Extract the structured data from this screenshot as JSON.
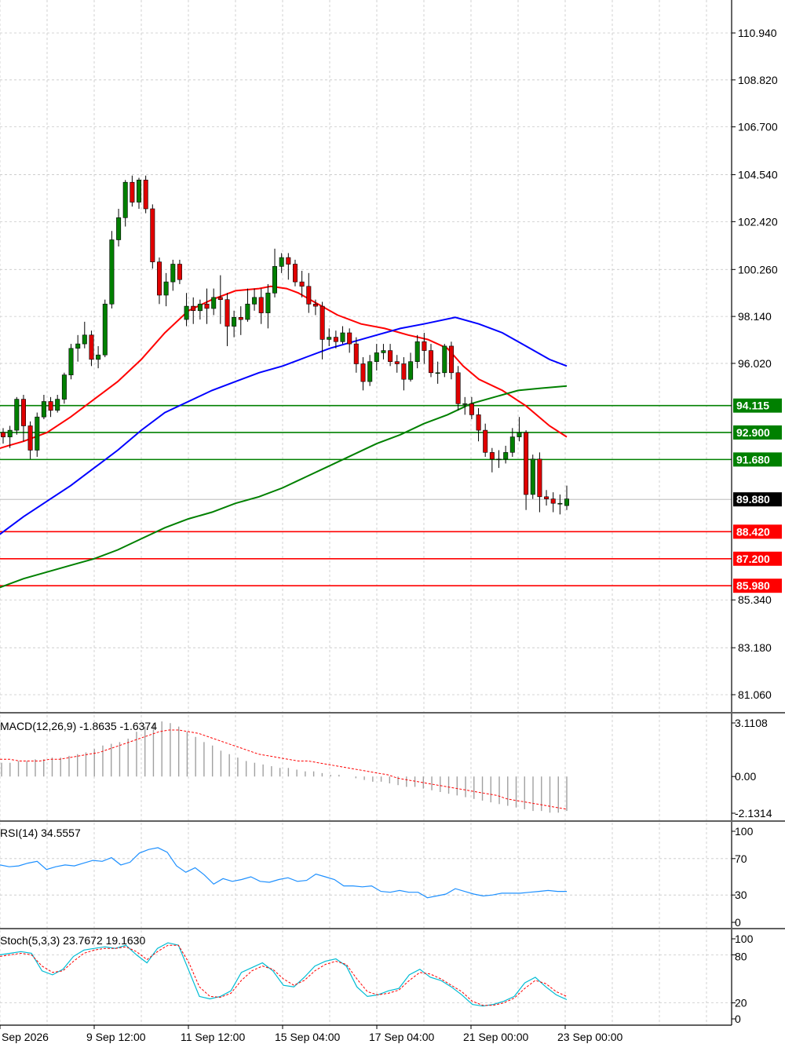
{
  "chart_data": {
    "type": "candlestick",
    "price_axis_ticks": [
      "110.940",
      "108.820",
      "106.700",
      "104.540",
      "102.420",
      "100.260",
      "98.140",
      "96.020",
      "85.340",
      "83.180",
      "81.060"
    ],
    "time_axis_labels": [
      "Sep 2026",
      "9 Sep 12:00",
      "11 Sep 12:00",
      "15 Sep 04:00",
      "17 Sep 04:00",
      "21 Sep 00:00",
      "23 Sep 00:00"
    ],
    "current_price": {
      "value": 89.88,
      "label": "89.880",
      "color": "#000000"
    },
    "support_resistance": [
      {
        "value": 94.115,
        "label": "94.115",
        "color": "#008000"
      },
      {
        "value": 92.9,
        "label": "92.900",
        "color": "#008000"
      },
      {
        "value": 91.68,
        "label": "91.680",
        "color": "#008000"
      },
      {
        "value": 88.42,
        "label": "88.420",
        "color": "#ff0000"
      },
      {
        "value": 87.2,
        "label": "87.200",
        "color": "#ff0000"
      },
      {
        "value": 85.98,
        "label": "85.980",
        "color": "#ff0000"
      }
    ],
    "candles": [
      [
        92.9,
        92.7,
        93.1,
        92.4
      ],
      [
        92.7,
        93.0,
        93.2,
        92.2
      ],
      [
        93.0,
        94.4,
        94.5,
        92.8
      ],
      [
        94.4,
        93.2,
        94.6,
        92.5
      ],
      [
        93.2,
        92.1,
        93.4,
        91.7
      ],
      [
        92.1,
        93.6,
        93.8,
        91.8
      ],
      [
        93.6,
        94.3,
        94.6,
        93.5
      ],
      [
        94.3,
        93.9,
        94.5,
        93.6
      ],
      [
        93.9,
        94.4,
        94.6,
        93.8
      ],
      [
        94.4,
        95.5,
        95.6,
        94.2
      ],
      [
        95.5,
        96.7,
        96.9,
        95.3
      ],
      [
        96.7,
        96.9,
        97.3,
        96.1
      ],
      [
        96.9,
        97.3,
        97.9,
        96.7
      ],
      [
        97.3,
        96.2,
        97.5,
        95.9
      ],
      [
        96.2,
        96.4,
        96.8,
        95.8
      ],
      [
        96.4,
        98.7,
        98.9,
        96.3
      ],
      [
        98.7,
        101.6,
        102.0,
        98.5
      ],
      [
        101.6,
        102.6,
        103.0,
        101.3
      ],
      [
        102.6,
        104.2,
        104.3,
        102.2
      ],
      [
        104.2,
        103.3,
        104.5,
        103.1
      ],
      [
        103.3,
        104.3,
        104.4,
        103.0
      ],
      [
        104.3,
        103.0,
        104.5,
        102.8
      ],
      [
        103.0,
        100.6,
        103.2,
        100.3
      ],
      [
        100.6,
        99.1,
        100.8,
        98.7
      ],
      [
        99.1,
        99.7,
        100.1,
        98.6
      ],
      [
        99.7,
        100.5,
        100.7,
        99.3
      ],
      [
        100.5,
        99.8,
        100.7,
        99.6
      ],
      [
        98.0,
        98.6,
        99.2,
        97.7
      ],
      [
        98.6,
        98.4,
        99.0,
        97.8
      ],
      [
        98.4,
        98.7,
        98.9,
        98.0
      ],
      [
        98.7,
        98.5,
        99.4,
        97.8
      ],
      [
        98.5,
        99.0,
        99.4,
        98.2
      ],
      [
        99.0,
        98.9,
        100.0,
        97.8
      ],
      [
        98.9,
        97.7,
        99.2,
        96.8
      ],
      [
        97.7,
        98.1,
        98.4,
        97.2
      ],
      [
        98.1,
        98.0,
        98.6,
        97.3
      ],
      [
        98.0,
        98.7,
        99.4,
        97.9
      ],
      [
        98.7,
        99.0,
        99.4,
        98.4
      ],
      [
        99.0,
        98.3,
        99.4,
        97.8
      ],
      [
        98.3,
        99.2,
        99.6,
        97.6
      ],
      [
        99.2,
        100.4,
        101.2,
        99.0
      ],
      [
        100.4,
        100.8,
        101.0,
        100.1
      ],
      [
        100.8,
        100.5,
        101.0,
        99.8
      ],
      [
        100.5,
        99.7,
        100.7,
        99.5
      ],
      [
        99.7,
        99.5,
        100.2,
        99.0
      ],
      [
        99.5,
        98.7,
        100.1,
        98.3
      ],
      [
        98.7,
        98.6,
        98.9,
        98.2
      ],
      [
        98.6,
        97.1,
        98.8,
        96.2
      ],
      [
        97.1,
        97.2,
        97.6,
        96.8
      ],
      [
        97.2,
        97.0,
        97.5,
        96.7
      ],
      [
        97.0,
        97.4,
        97.7,
        96.9
      ],
      [
        97.4,
        96.9,
        97.6,
        96.5
      ],
      [
        96.9,
        96.0,
        97.2,
        95.6
      ],
      [
        96.0,
        95.2,
        96.3,
        94.8
      ],
      [
        95.2,
        96.1,
        96.4,
        95.0
      ],
      [
        96.1,
        96.5,
        96.9,
        95.7
      ],
      [
        96.5,
        96.6,
        96.9,
        96.2
      ],
      [
        96.6,
        96.1,
        96.9,
        95.9
      ],
      [
        96.1,
        96.0,
        96.4,
        95.6
      ],
      [
        96.0,
        95.3,
        96.3,
        94.8
      ],
      [
        95.3,
        96.1,
        96.5,
        95.2
      ],
      [
        96.1,
        97.0,
        97.3,
        95.8
      ],
      [
        97.0,
        96.6,
        97.4,
        96.0
      ],
      [
        96.6,
        95.6,
        96.9,
        95.4
      ],
      [
        95.6,
        95.6,
        96.1,
        95.1
      ],
      [
        95.6,
        96.8,
        96.9,
        95.4
      ],
      [
        96.8,
        95.6,
        97.0,
        95.3
      ],
      [
        95.6,
        94.2,
        95.9,
        93.9
      ],
      [
        94.2,
        94.2,
        94.5,
        93.7
      ],
      [
        94.2,
        93.7,
        94.5,
        93.5
      ],
      [
        93.7,
        93.0,
        94.0,
        92.5
      ],
      [
        93.0,
        92.0,
        93.3,
        91.8
      ],
      [
        92.0,
        91.7,
        92.2,
        91.1
      ],
      [
        91.7,
        91.7,
        92.1,
        91.3
      ],
      [
        91.7,
        92.0,
        92.3,
        91.5
      ],
      [
        92.0,
        92.7,
        93.1,
        91.8
      ],
      [
        92.7,
        92.9,
        93.6,
        92.5
      ],
      [
        92.9,
        90.1,
        93.0,
        89.4
      ],
      [
        90.1,
        91.7,
        91.9,
        89.9
      ],
      [
        91.7,
        90.0,
        92.0,
        89.3
      ],
      [
        90.0,
        89.9,
        90.3,
        89.6
      ],
      [
        89.9,
        89.7,
        90.2,
        89.3
      ],
      [
        89.7,
        89.7,
        90.1,
        89.2
      ],
      [
        89.6,
        89.9,
        90.5,
        89.4
      ]
    ],
    "ma_lines": [
      {
        "color": "#ff0000",
        "points": [
          [
            -8,
            92.1
          ],
          [
            10,
            92.3
          ],
          [
            30,
            92.5
          ],
          [
            60,
            92.9
          ],
          [
            90,
            93.6
          ],
          [
            120,
            94.4
          ],
          [
            150,
            95.2
          ],
          [
            180,
            96.2
          ],
          [
            210,
            97.4
          ],
          [
            240,
            98.4
          ],
          [
            270,
            98.9
          ],
          [
            300,
            99.3
          ],
          [
            330,
            99.4
          ],
          [
            345,
            99.5
          ],
          [
            365,
            99.4
          ],
          [
            380,
            99.2
          ],
          [
            400,
            98.8
          ],
          [
            430,
            98.2
          ],
          [
            460,
            97.8
          ],
          [
            490,
            97.6
          ],
          [
            520,
            97.3
          ],
          [
            545,
            97.1
          ],
          [
            570,
            96.7
          ],
          [
            590,
            95.9
          ],
          [
            610,
            95.3
          ],
          [
            640,
            94.8
          ],
          [
            670,
            94.1
          ],
          [
            700,
            93.2
          ],
          [
            722,
            92.7
          ]
        ]
      },
      {
        "color": "#0000ff",
        "points": [
          [
            -8,
            88.1
          ],
          [
            30,
            89.1
          ],
          [
            60,
            89.8
          ],
          [
            90,
            90.5
          ],
          [
            120,
            91.3
          ],
          [
            150,
            92.1
          ],
          [
            180,
            93.0
          ],
          [
            210,
            93.8
          ],
          [
            240,
            94.3
          ],
          [
            270,
            94.8
          ],
          [
            300,
            95.2
          ],
          [
            330,
            95.6
          ],
          [
            360,
            95.9
          ],
          [
            390,
            96.3
          ],
          [
            420,
            96.7
          ],
          [
            450,
            97.0
          ],
          [
            480,
            97.3
          ],
          [
            510,
            97.6
          ],
          [
            540,
            97.8
          ],
          [
            580,
            98.1
          ],
          [
            610,
            97.8
          ],
          [
            640,
            97.4
          ],
          [
            670,
            96.8
          ],
          [
            700,
            96.2
          ],
          [
            722,
            95.9
          ]
        ]
      },
      {
        "color": "#008000",
        "points": [
          [
            -8,
            85.8
          ],
          [
            30,
            86.3
          ],
          [
            60,
            86.6
          ],
          [
            90,
            86.9
          ],
          [
            120,
            87.2
          ],
          [
            150,
            87.6
          ],
          [
            180,
            88.1
          ],
          [
            210,
            88.6
          ],
          [
            240,
            89.0
          ],
          [
            270,
            89.3
          ],
          [
            300,
            89.7
          ],
          [
            330,
            90.0
          ],
          [
            360,
            90.4
          ],
          [
            390,
            90.9
          ],
          [
            420,
            91.4
          ],
          [
            450,
            91.9
          ],
          [
            480,
            92.4
          ],
          [
            510,
            92.8
          ],
          [
            540,
            93.3
          ],
          [
            570,
            93.7
          ],
          [
            600,
            94.2
          ],
          [
            630,
            94.5
          ],
          [
            660,
            94.8
          ],
          [
            690,
            94.9
          ],
          [
            722,
            95.0
          ]
        ]
      }
    ],
    "macd": {
      "label": "MACD(12,26,9) -1.8635 -1.6374",
      "ticks": [
        "3.1108",
        "0.00",
        "-2.1314"
      ],
      "histogram": [
        0.8,
        0.8,
        0.9,
        0.9,
        1.0,
        1.0,
        1.1,
        1.1,
        1.2,
        1.3,
        1.4,
        1.6,
        1.8,
        1.9,
        2.0,
        2.2,
        2.6,
        2.9,
        3.1,
        3.2,
        3.1,
        2.9,
        2.6,
        2.3,
        2.0,
        1.8,
        1.5,
        1.3,
        1.1,
        0.9,
        0.8,
        0.7,
        0.6,
        0.5,
        0.5,
        0.4,
        0.3,
        0.3,
        0.2,
        0.1,
        0.1,
        0.0,
        -0.1,
        -0.2,
        -0.3,
        -0.3,
        -0.4,
        -0.5,
        -0.6,
        -0.6,
        -0.7,
        -0.8,
        -0.9,
        -1.0,
        -1.1,
        -1.2,
        -1.3,
        -1.4,
        -1.5,
        -1.6,
        -1.7,
        -1.8,
        -1.9,
        -2.0,
        -2.0,
        -2.1,
        -2.1,
        -2.0
      ],
      "signal": [
        1.0,
        1.0,
        0.9,
        0.9,
        0.9,
        1.0,
        1.0,
        1.1,
        1.2,
        1.3,
        1.4,
        1.6,
        1.8,
        2.0,
        2.2,
        2.4,
        2.6,
        2.7,
        2.7,
        2.6,
        2.5,
        2.3,
        2.1,
        1.9,
        1.7,
        1.5,
        1.3,
        1.2,
        1.1,
        1.0,
        0.9,
        0.9,
        0.8,
        0.7,
        0.6,
        0.5,
        0.4,
        0.3,
        0.2,
        0.1,
        -0.1,
        -0.2,
        -0.3,
        -0.4,
        -0.5,
        -0.6,
        -0.7,
        -0.8,
        -0.9,
        -1.0,
        -1.1,
        -1.3,
        -1.4,
        -1.5,
        -1.6,
        -1.7,
        -1.8,
        -1.9
      ]
    },
    "rsi": {
      "label": "RSI(14) 34.5557",
      "ticks": [
        "100",
        "70",
        "30",
        "0"
      ],
      "values": [
        63,
        61,
        62,
        65,
        67,
        58,
        61,
        63,
        62,
        65,
        68,
        67,
        71,
        63,
        66,
        76,
        80,
        82,
        77,
        62,
        55,
        60,
        52,
        42,
        48,
        45,
        47,
        50,
        45,
        44,
        47,
        49,
        45,
        46,
        53,
        50,
        47,
        40,
        40,
        39,
        40,
        34,
        33,
        35,
        33,
        33,
        27,
        29,
        31,
        37,
        34,
        31,
        29,
        30,
        32,
        32,
        32,
        33,
        34,
        35,
        34,
        34
      ]
    },
    "stoch": {
      "label": "Stoch(5,3,3) 23.7672 19.1630",
      "ticks": [
        "100",
        "80",
        "20",
        "0"
      ],
      "main": [
        80,
        82,
        84,
        82,
        60,
        55,
        62,
        78,
        86,
        88,
        90,
        88,
        92,
        80,
        70,
        88,
        95,
        92,
        60,
        28,
        25,
        28,
        35,
        58,
        64,
        70,
        60,
        42,
        40,
        52,
        66,
        72,
        75,
        66,
        40,
        28,
        30,
        35,
        38,
        55,
        62,
        52,
        48,
        40,
        30,
        18,
        16,
        18,
        22,
        28,
        45,
        52,
        40,
        30,
        24
      ],
      "signal": [
        78,
        80,
        82,
        80,
        66,
        58,
        60,
        72,
        82,
        86,
        88,
        88,
        90,
        84,
        74,
        84,
        92,
        92,
        70,
        40,
        28,
        27,
        32,
        48,
        60,
        66,
        62,
        50,
        42,
        48,
        60,
        68,
        72,
        68,
        50,
        34,
        30,
        32,
        36,
        48,
        58,
        56,
        50,
        42,
        34,
        22,
        17,
        17,
        20,
        26,
        38,
        48,
        44,
        34,
        28
      ]
    }
  }
}
